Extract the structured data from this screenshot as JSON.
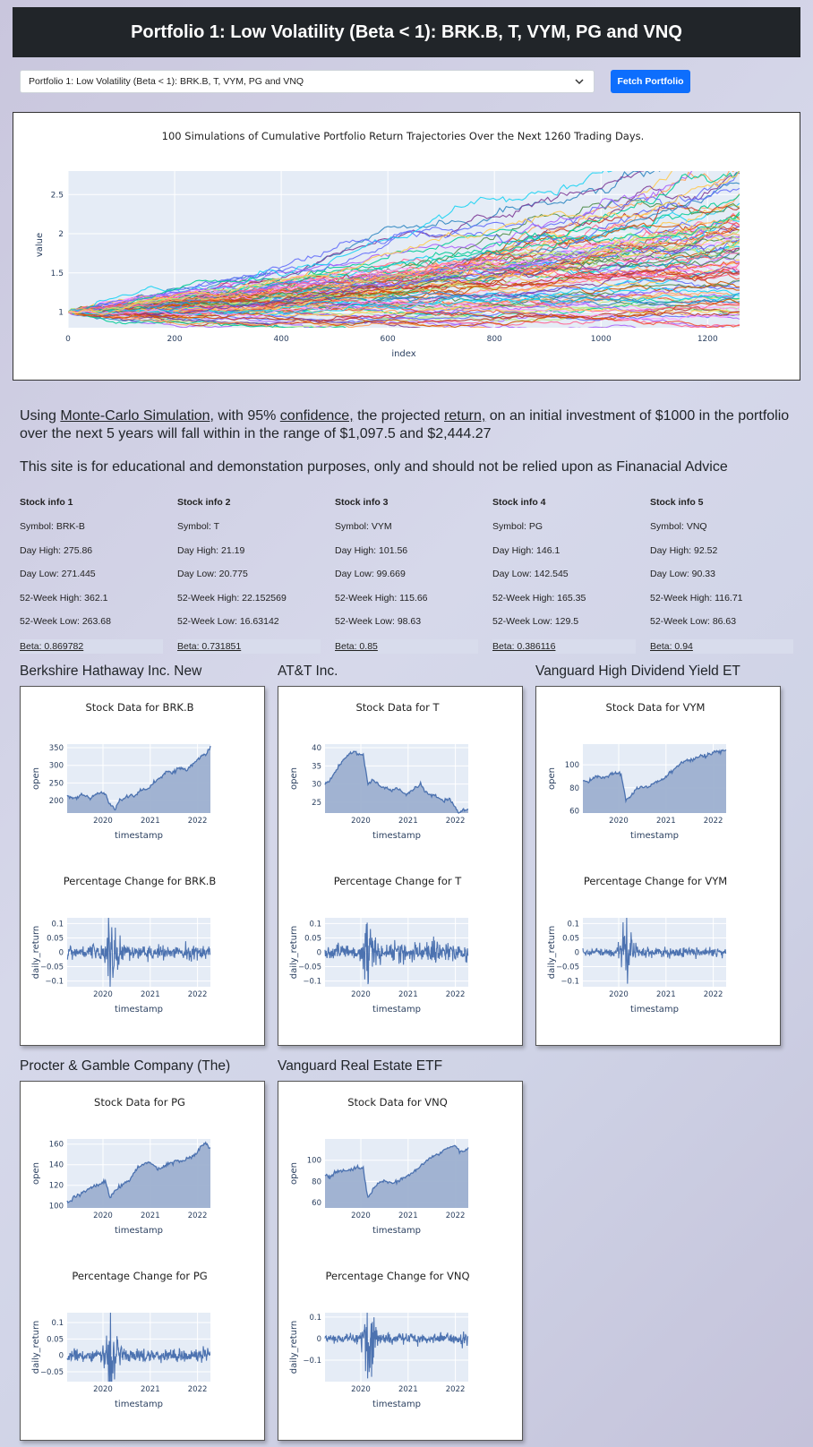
{
  "header": {
    "title": "Portfolio 1: Low Volatility (Beta < 1): BRK.B, T, VYM, PG and VNQ"
  },
  "controls": {
    "selected": "Portfolio 1: Low Volatility (Beta < 1): BRK.B, T, VYM, PG and VNQ",
    "fetch_label": "Fetch Portfolio"
  },
  "summary": {
    "p1": "Using ",
    "link1": "Monte-Carlo Simulation,",
    "p2": " with 95% ",
    "link2": "confidence,",
    "p3": " the projected ",
    "link3": "return,",
    "p4": " on an initial investment of $1000 in the portfolio over the next 5 years will fall within in the range of $1,097.5 and $2,444.27"
  },
  "disclaimer": "This site is for educational and demonstation purposes, only and should not be relied upon as Finanacial Advice",
  "stock_info": [
    {
      "title": "Stock info 1",
      "symbol": "Symbol: BRK-B",
      "day_high": "Day High: 275.86",
      "day_low": "Day Low: 271.445",
      "wk_high": "52-Week High: 362.1",
      "wk_low": "52-Week Low: 263.68",
      "beta": "Beta: 0.869782"
    },
    {
      "title": "Stock info 2",
      "symbol": "Symbol: T",
      "day_high": "Day High: 21.19",
      "day_low": "Day Low: 20.775",
      "wk_high": "52-Week High: 22.152569",
      "wk_low": "52-Week Low: 16.63142",
      "beta": "Beta: 0.731851"
    },
    {
      "title": "Stock info 3",
      "symbol": "Symbol: VYM",
      "day_high": "Day High: 101.56",
      "day_low": "Day Low: 99.669",
      "wk_high": "52-Week High: 115.66",
      "wk_low": "52-Week Low: 98.63",
      "beta": "Beta: 0.85"
    },
    {
      "title": "Stock info 4",
      "symbol": "Symbol: PG",
      "day_high": "Day High: 146.1",
      "day_low": "Day Low: 142.545",
      "wk_high": "52-Week High: 165.35",
      "wk_low": "52-Week Low: 129.5",
      "beta": "Beta: 0.386116"
    },
    {
      "title": "Stock info 5",
      "symbol": "Symbol: VNQ",
      "day_high": "Day High: 92.52",
      "day_low": "Day Low: 90.33",
      "wk_high": "52-Week High: 116.71",
      "wk_low": "52-Week Low: 86.63",
      "beta": "Beta: 0.94"
    }
  ],
  "companies": [
    {
      "name": "Berkshire Hathaway Inc. New",
      "price_title": "Stock Data for BRK.B",
      "pct_title": "Percentage Change for BRK.B"
    },
    {
      "name": "AT&T Inc.",
      "price_title": "Stock Data for T",
      "pct_title": "Percentage Change for T"
    },
    {
      "name": "Vanguard High Dividend Yield ET",
      "price_title": "Stock Data for VYM",
      "pct_title": "Percentage Change for VYM"
    },
    {
      "name": "Procter & Gamble Company (The)",
      "price_title": "Stock Data for PG",
      "pct_title": "Percentage Change for PG"
    },
    {
      "name": "Vanguard Real Estate ETF",
      "price_title": "Stock Data for VNQ",
      "pct_title": "Percentage Change for VNQ"
    }
  ],
  "colors": {
    "plot_bg": "#e5ecf6",
    "line": "#4c72b0",
    "fill": "#9db0d0",
    "header_bg": "#212529",
    "button": "#0d6efd"
  },
  "chart_data": [
    {
      "type": "line",
      "title": "100 Simulations of Cumulative Portfolio Return Trajectories Over the Next 1260 Trading Days.",
      "xlabel": "index",
      "ylabel": "value",
      "xlim": [
        0,
        1260
      ],
      "ylim": [
        0.8,
        2.8
      ],
      "xticks": [
        "0",
        "200",
        "400",
        "600",
        "800",
        "1000",
        "1200"
      ],
      "yticks": [
        "1",
        "1.5",
        "2",
        "2.5"
      ],
      "n_series": 100,
      "start_value": 1,
      "end_range": [
        0.7,
        2.7
      ]
    },
    {
      "type": "area",
      "title": "Stock Data for BRK.B",
      "xlabel": "timestamp",
      "ylabel": "open",
      "xticks": [
        "2020",
        "2021",
        "2022"
      ],
      "yticks": [
        "200",
        "250",
        "300",
        "350"
      ],
      "ylim": [
        165,
        360
      ],
      "values": [
        215,
        210,
        208,
        218,
        212,
        205,
        220,
        223,
        218,
        188,
        178,
        200,
        205,
        215,
        212,
        225,
        230,
        235,
        250,
        258,
        270,
        285,
        278,
        290,
        295,
        285,
        300,
        312,
        325,
        330,
        355
      ]
    },
    {
      "type": "line",
      "title": "Percentage Change for BRK.B",
      "xlabel": "timestamp",
      "ylabel": "daily_return",
      "xticks": [
        "2020",
        "2021",
        "2022"
      ],
      "yticks": [
        "0.1",
        "0.05",
        "0",
        "−0.05",
        "−0.1"
      ],
      "ylim": [
        -0.12,
        0.12
      ],
      "vol": [
        0.01,
        0.012,
        0.01,
        0.011,
        0.012,
        0.011,
        0.012,
        0.013,
        0.03,
        0.09,
        0.04,
        0.02,
        0.015,
        0.014,
        0.013,
        0.013,
        0.012,
        0.012,
        0.011,
        0.011,
        0.012,
        0.011,
        0.012,
        0.013,
        0.012,
        0.014,
        0.013,
        0.012,
        0.013,
        0.012,
        0.012
      ]
    },
    {
      "type": "area",
      "title": "Stock Data for T",
      "xlabel": "timestamp",
      "ylabel": "open",
      "xticks": [
        "2020",
        "2021",
        "2022"
      ],
      "yticks": [
        "25",
        "30",
        "35",
        "40"
      ],
      "ylim": [
        22,
        41
      ],
      "values": [
        30,
        31,
        33,
        35,
        37,
        38,
        39,
        38,
        38,
        30,
        31,
        30,
        29,
        29,
        28,
        29,
        28,
        27,
        28,
        29,
        30,
        28,
        27,
        27,
        26,
        25,
        26,
        24,
        22,
        23,
        23
      ]
    },
    {
      "type": "line",
      "title": "Percentage Change for T",
      "xlabel": "timestamp",
      "ylabel": "daily_return",
      "xticks": [
        "2020",
        "2021",
        "2022"
      ],
      "yticks": [
        "0.1",
        "0.05",
        "0",
        "−0.05",
        "−0.1"
      ],
      "ylim": [
        -0.12,
        0.12
      ],
      "vol": [
        0.012,
        0.013,
        0.014,
        0.012,
        0.013,
        0.014,
        0.013,
        0.014,
        0.04,
        0.08,
        0.04,
        0.02,
        0.016,
        0.015,
        0.015,
        0.014,
        0.015,
        0.014,
        0.015,
        0.016,
        0.015,
        0.016,
        0.014,
        0.03,
        0.016,
        0.015,
        0.016,
        0.015,
        0.016,
        0.015,
        0.014
      ]
    },
    {
      "type": "area",
      "title": "Stock Data for VYM",
      "xlabel": "timestamp",
      "ylabel": "open",
      "xticks": [
        "2020",
        "2021",
        "2022"
      ],
      "yticks": [
        "60",
        "80",
        "100"
      ],
      "ylim": [
        58,
        118
      ],
      "values": [
        86,
        85,
        88,
        90,
        89,
        90,
        92,
        93,
        92,
        70,
        72,
        78,
        80,
        80,
        82,
        84,
        86,
        88,
        92,
        96,
        100,
        102,
        104,
        104,
        106,
        108,
        108,
        110,
        112,
        111,
        113
      ]
    },
    {
      "type": "line",
      "title": "Percentage Change for VYM",
      "xlabel": "timestamp",
      "ylabel": "daily_return",
      "xticks": [
        "2020",
        "2021",
        "2022"
      ],
      "yticks": [
        "0.1",
        "0.05",
        "0",
        "−0.05",
        "−0.1"
      ],
      "ylim": [
        -0.12,
        0.12
      ],
      "vol": [
        0.006,
        0.006,
        0.007,
        0.006,
        0.007,
        0.006,
        0.007,
        0.008,
        0.04,
        0.085,
        0.04,
        0.015,
        0.01,
        0.009,
        0.008,
        0.008,
        0.008,
        0.007,
        0.008,
        0.008,
        0.007,
        0.008,
        0.007,
        0.008,
        0.008,
        0.009,
        0.008,
        0.008,
        0.009,
        0.01,
        0.009
      ]
    },
    {
      "type": "area",
      "title": "Stock Data for PG",
      "xlabel": "timestamp",
      "ylabel": "open",
      "xticks": [
        "2020",
        "2021",
        "2022"
      ],
      "yticks": [
        "100",
        "120",
        "140",
        "160"
      ],
      "ylim": [
        98,
        165
      ],
      "values": [
        104,
        106,
        110,
        112,
        115,
        118,
        120,
        122,
        124,
        108,
        115,
        118,
        122,
        125,
        132,
        138,
        140,
        142,
        140,
        136,
        138,
        140,
        142,
        144,
        142,
        146,
        148,
        150,
        158,
        160,
        156
      ]
    },
    {
      "type": "line",
      "title": "Percentage Change for PG",
      "xlabel": "timestamp",
      "ylabel": "daily_return",
      "xticks": [
        "2020",
        "2021",
        "2022"
      ],
      "yticks": [
        "0.1",
        "0.05",
        "0",
        "−0.05"
      ],
      "ylim": [
        -0.08,
        0.13
      ],
      "vol": [
        0.008,
        0.009,
        0.008,
        0.009,
        0.008,
        0.009,
        0.008,
        0.009,
        0.03,
        0.08,
        0.03,
        0.015,
        0.011,
        0.01,
        0.009,
        0.01,
        0.009,
        0.01,
        0.009,
        0.01,
        0.009,
        0.01,
        0.009,
        0.01,
        0.009,
        0.01,
        0.011,
        0.01,
        0.011,
        0.012,
        0.011
      ]
    },
    {
      "type": "area",
      "title": "Stock Data for VNQ",
      "xlabel": "timestamp",
      "ylabel": "open",
      "xticks": [
        "2020",
        "2021",
        "2022"
      ],
      "yticks": [
        "60",
        "80",
        "100"
      ],
      "ylim": [
        55,
        120
      ],
      "values": [
        86,
        84,
        88,
        89,
        90,
        91,
        92,
        93,
        92,
        64,
        72,
        78,
        80,
        80,
        78,
        80,
        82,
        84,
        88,
        90,
        94,
        98,
        102,
        104,
        106,
        110,
        112,
        114,
        110,
        108,
        112
      ]
    },
    {
      "type": "line",
      "title": "Percentage Change for VNQ",
      "xlabel": "timestamp",
      "ylabel": "daily_return",
      "xticks": [
        "2020",
        "2021",
        "2022"
      ],
      "yticks": [
        "0.1",
        "0",
        "−0.1"
      ],
      "ylim": [
        -0.2,
        0.12
      ],
      "vol": [
        0.008,
        0.009,
        0.008,
        0.009,
        0.008,
        0.009,
        0.009,
        0.01,
        0.05,
        0.12,
        0.05,
        0.02,
        0.014,
        0.013,
        0.012,
        0.012,
        0.011,
        0.011,
        0.01,
        0.011,
        0.01,
        0.011,
        0.01,
        0.011,
        0.012,
        0.012,
        0.013,
        0.012,
        0.013,
        0.014,
        0.013
      ]
    }
  ]
}
